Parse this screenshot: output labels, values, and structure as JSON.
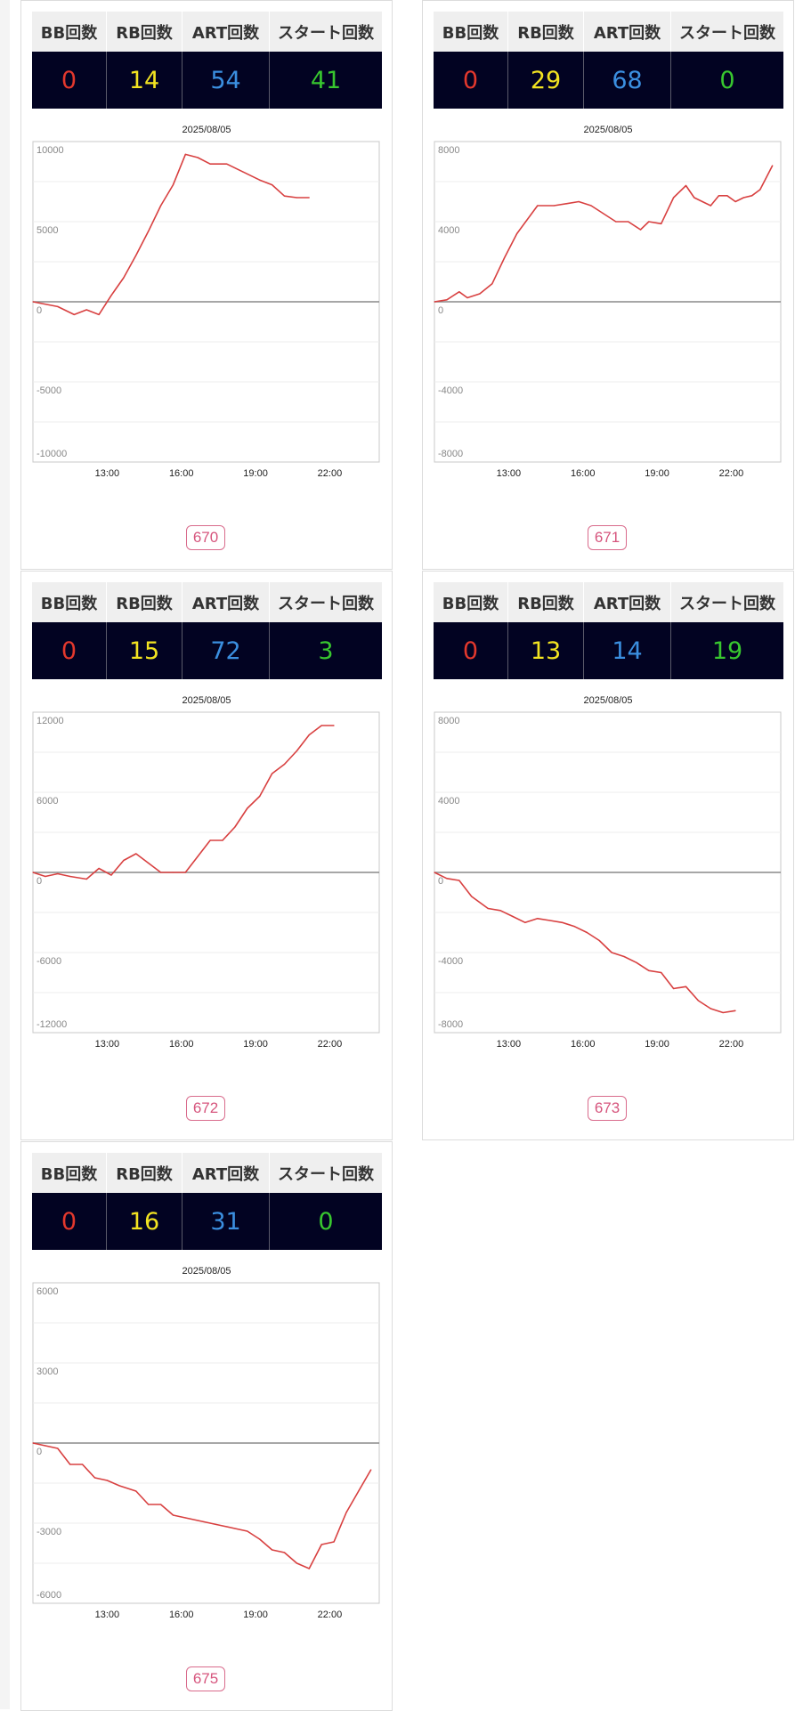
{
  "headers": {
    "bb": "BB回数",
    "rb": "RB回数",
    "art": "ART回数",
    "start": "スタート回数"
  },
  "colors": {
    "line": "#d84040",
    "bb": "#e3382d",
    "rb": "#f2e321",
    "art": "#3b8fe0",
    "start": "#38c72f",
    "panel": "#020322",
    "badge": "#d96b8c"
  },
  "cards": [
    {
      "machine": "670",
      "bb": "0",
      "rb": "14",
      "art": "54",
      "start": "41",
      "date": "2025/08/05"
    },
    {
      "machine": "671",
      "bb": "0",
      "rb": "29",
      "art": "68",
      "start": "0",
      "date": "2025/08/05"
    },
    {
      "machine": "672",
      "bb": "0",
      "rb": "15",
      "art": "72",
      "start": "3",
      "date": "2025/08/05"
    },
    {
      "machine": "673",
      "bb": "0",
      "rb": "13",
      "art": "14",
      "start": "19",
      "date": "2025/08/05"
    },
    {
      "machine": "675",
      "bb": "0",
      "rb": "16",
      "art": "31",
      "start": "0",
      "date": "2025/08/05"
    }
  ],
  "chart_data": [
    {
      "type": "line",
      "title": "2025/08/05",
      "x_ticks": [
        "13:00",
        "16:00",
        "19:00",
        "22:00"
      ],
      "x_range": [
        "10:00",
        "24:00"
      ],
      "ylim": [
        -10000,
        10000
      ],
      "y_ticks": [
        10000,
        5000,
        0,
        -5000,
        -10000
      ],
      "grid": true,
      "series": [
        {
          "x": [
            "10:00",
            "11:00",
            "11:40",
            "12:10",
            "12:40",
            "13:10",
            "13:40",
            "14:10",
            "14:40",
            "15:10",
            "15:40",
            "16:10",
            "16:40",
            "17:10",
            "17:50",
            "18:30",
            "19:10",
            "19:40",
            "20:10",
            "20:40",
            "21:10"
          ],
          "y": [
            0,
            -300,
            -800,
            -500,
            -800,
            400,
            1500,
            2900,
            4400,
            6000,
            7300,
            9200,
            9000,
            8600,
            8600,
            8100,
            7600,
            7300,
            6600,
            6500,
            6500
          ]
        }
      ]
    },
    {
      "type": "line",
      "title": "2025/08/05",
      "x_ticks": [
        "13:00",
        "16:00",
        "19:00",
        "22:00"
      ],
      "x_range": [
        "10:00",
        "24:00"
      ],
      "ylim": [
        -8000,
        8000
      ],
      "y_ticks": [
        8000,
        4000,
        0,
        -4000,
        -8000
      ],
      "grid": true,
      "series": [
        {
          "x": [
            "10:00",
            "10:30",
            "11:00",
            "11:20",
            "11:50",
            "12:20",
            "12:50",
            "13:20",
            "14:10",
            "14:50",
            "15:20",
            "15:50",
            "16:20",
            "16:50",
            "17:20",
            "17:50",
            "18:20",
            "18:40",
            "19:10",
            "19:40",
            "20:10",
            "20:30",
            "20:50",
            "21:10",
            "21:30",
            "21:50",
            "22:10",
            "22:30",
            "22:50",
            "23:10",
            "23:40"
          ],
          "y": [
            0,
            100,
            500,
            200,
            400,
            900,
            2200,
            3400,
            4800,
            4800,
            4900,
            5000,
            4800,
            4400,
            4000,
            4000,
            3600,
            4000,
            3900,
            5200,
            5800,
            5200,
            5000,
            4800,
            5300,
            5300,
            5000,
            5200,
            5300,
            5600,
            6800
          ]
        }
      ]
    },
    {
      "type": "line",
      "title": "2025/08/05",
      "x_ticks": [
        "13:00",
        "16:00",
        "19:00",
        "22:00"
      ],
      "x_range": [
        "10:00",
        "24:00"
      ],
      "ylim": [
        -12000,
        12000
      ],
      "y_ticks": [
        12000,
        6000,
        0,
        -6000,
        -12000
      ],
      "grid": true,
      "series": [
        {
          "x": [
            "10:00",
            "10:30",
            "11:00",
            "11:30",
            "12:10",
            "12:40",
            "13:10",
            "13:40",
            "14:10",
            "14:40",
            "15:10",
            "15:40",
            "16:10",
            "16:40",
            "17:10",
            "17:40",
            "18:10",
            "18:40",
            "19:10",
            "19:40",
            "20:10",
            "20:40",
            "21:10",
            "21:40",
            "22:10"
          ],
          "y": [
            0,
            -300,
            -100,
            -300,
            -500,
            300,
            -200,
            900,
            1400,
            700,
            0,
            0,
            0,
            1200,
            2400,
            2400,
            3400,
            4800,
            5700,
            7400,
            8100,
            9100,
            10300,
            11000,
            11000
          ]
        }
      ]
    },
    {
      "type": "line",
      "title": "2025/08/05",
      "x_ticks": [
        "13:00",
        "16:00",
        "19:00",
        "22:00"
      ],
      "x_range": [
        "10:00",
        "24:00"
      ],
      "ylim": [
        -8000,
        8000
      ],
      "y_ticks": [
        8000,
        4000,
        0,
        -4000,
        -8000
      ],
      "grid": true,
      "series": [
        {
          "x": [
            "10:00",
            "10:30",
            "11:00",
            "11:30",
            "12:10",
            "12:40",
            "13:10",
            "13:40",
            "14:10",
            "14:40",
            "15:10",
            "15:40",
            "16:10",
            "16:40",
            "17:10",
            "17:40",
            "18:10",
            "18:40",
            "19:10",
            "19:40",
            "20:10",
            "20:40",
            "21:10",
            "21:40",
            "22:10"
          ],
          "y": [
            0,
            -300,
            -400,
            -1200,
            -1800,
            -1900,
            -2200,
            -2500,
            -2300,
            -2400,
            -2500,
            -2700,
            -3000,
            -3400,
            -4000,
            -4200,
            -4500,
            -4900,
            -5000,
            -5800,
            -5700,
            -6400,
            -6800,
            -7000,
            -6900
          ]
        }
      ]
    },
    {
      "type": "line",
      "title": "2025/08/05",
      "x_ticks": [
        "13:00",
        "16:00",
        "19:00",
        "22:00"
      ],
      "x_range": [
        "10:00",
        "24:00"
      ],
      "ylim": [
        -6000,
        6000
      ],
      "y_ticks": [
        6000,
        3000,
        0,
        -3000,
        -6000
      ],
      "grid": true,
      "series": [
        {
          "x": [
            "10:00",
            "10:30",
            "11:00",
            "11:30",
            "12:00",
            "12:30",
            "13:00",
            "13:30",
            "14:10",
            "14:40",
            "15:10",
            "15:40",
            "16:10",
            "16:40",
            "17:10",
            "17:40",
            "18:10",
            "18:40",
            "19:10",
            "19:40",
            "20:10",
            "20:40",
            "21:10",
            "21:40",
            "22:10",
            "22:40",
            "23:10",
            "23:40"
          ],
          "y": [
            0,
            -100,
            -200,
            -800,
            -800,
            -1300,
            -1400,
            -1600,
            -1800,
            -2300,
            -2300,
            -2700,
            -2800,
            -2900,
            -3000,
            -3100,
            -3200,
            -3300,
            -3600,
            -4000,
            -4100,
            -4500,
            -4700,
            -3800,
            -3700,
            -2600,
            -1800,
            -1000
          ]
        }
      ]
    }
  ]
}
